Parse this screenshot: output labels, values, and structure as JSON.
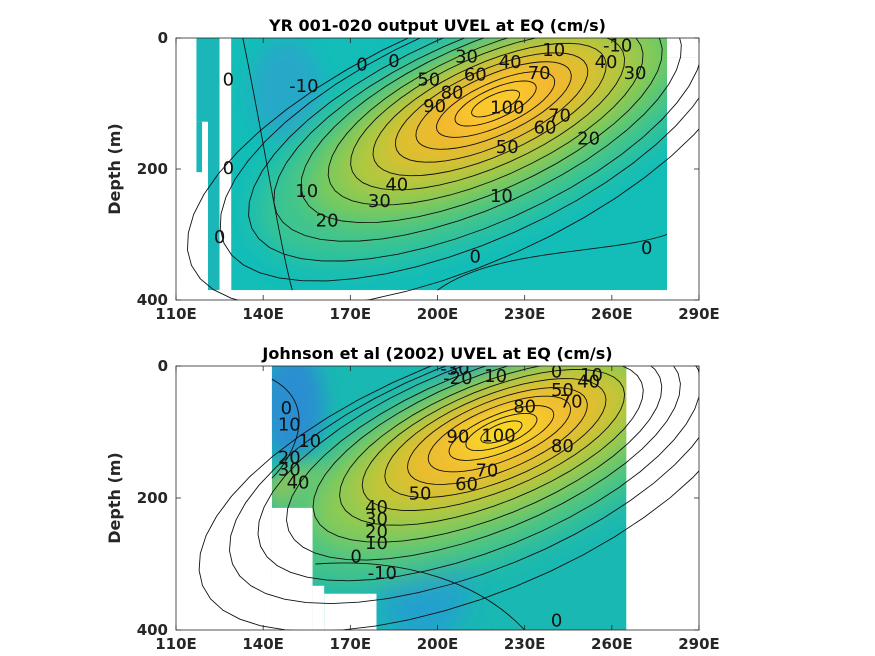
{
  "chart_data": [
    {
      "type": "heatmap",
      "subtype": "filled-contour",
      "title": "YR 001-020 output UVEL at EQ (cm/s)",
      "xlabel": "",
      "ylabel": "Depth (m)",
      "xlim": [
        110,
        290
      ],
      "ylim": [
        0,
        400
      ],
      "y_reversed": true,
      "x_ticks": [
        "110E",
        "140E",
        "170E",
        "200E",
        "230E",
        "260E",
        "290E"
      ],
      "y_ticks": [
        "0",
        "200",
        "400"
      ],
      "grid": false,
      "data_extent": {
        "x": [
          117,
          279
        ],
        "depth": [
          0,
          385
        ]
      },
      "jet_core": {
        "lon": 220,
        "depth": 100,
        "max_speed": 100
      },
      "contour_labels": [
        {
          "text": "0",
          "lon": 128,
          "depth": 65
        },
        {
          "text": "-10",
          "lon": 154,
          "depth": 75
        },
        {
          "text": "0",
          "lon": 174,
          "depth": 42
        },
        {
          "text": "0",
          "lon": 185,
          "depth": 37
        },
        {
          "text": "-10",
          "lon": 262,
          "depth": 13
        },
        {
          "text": "10",
          "lon": 240,
          "depth": 20
        },
        {
          "text": "40",
          "lon": 258,
          "depth": 38
        },
        {
          "text": "30",
          "lon": 268,
          "depth": 55
        },
        {
          "text": "30",
          "lon": 210,
          "depth": 30
        },
        {
          "text": "40",
          "lon": 225,
          "depth": 38
        },
        {
          "text": "70",
          "lon": 235,
          "depth": 55
        },
        {
          "text": "50",
          "lon": 197,
          "depth": 65
        },
        {
          "text": "60",
          "lon": 213,
          "depth": 57
        },
        {
          "text": "80",
          "lon": 205,
          "depth": 85
        },
        {
          "text": "90",
          "lon": 199,
          "depth": 105
        },
        {
          "text": "100",
          "lon": 224,
          "depth": 108
        },
        {
          "text": "70",
          "lon": 242,
          "depth": 120
        },
        {
          "text": "60",
          "lon": 237,
          "depth": 138
        },
        {
          "text": "50",
          "lon": 224,
          "depth": 168
        },
        {
          "text": "20",
          "lon": 252,
          "depth": 155
        },
        {
          "text": "40",
          "lon": 186,
          "depth": 225
        },
        {
          "text": "30",
          "lon": 180,
          "depth": 250
        },
        {
          "text": "10",
          "lon": 155,
          "depth": 235
        },
        {
          "text": "20",
          "lon": 162,
          "depth": 280
        },
        {
          "text": "10",
          "lon": 222,
          "depth": 243
        },
        {
          "text": "0",
          "lon": 128,
          "depth": 200
        },
        {
          "text": "0",
          "lon": 125,
          "depth": 305
        },
        {
          "text": "0",
          "lon": 213,
          "depth": 335
        },
        {
          "text": "0",
          "lon": 272,
          "depth": 322
        }
      ]
    },
    {
      "type": "heatmap",
      "subtype": "filled-contour",
      "title": "Johnson et al (2002) UVEL at EQ (cm/s)",
      "xlabel": "",
      "ylabel": "Depth (m)",
      "xlim": [
        110,
        290
      ],
      "ylim": [
        0,
        400
      ],
      "y_reversed": true,
      "x_ticks": [
        "110E",
        "140E",
        "170E",
        "200E",
        "230E",
        "260E",
        "290E"
      ],
      "y_ticks": [
        "0",
        "200",
        "400"
      ],
      "grid": false,
      "data_extent": {
        "x": [
          143,
          265
        ],
        "depth": [
          0,
          400
        ]
      },
      "jet_core": {
        "lon": 222,
        "depth": 100,
        "max_speed": 100
      },
      "contour_labels": [
        {
          "text": "-30",
          "lon": 206,
          "depth": 5
        },
        {
          "text": "-20",
          "lon": 207,
          "depth": 20
        },
        {
          "text": "10",
          "lon": 220,
          "depth": 17
        },
        {
          "text": "0",
          "lon": 241,
          "depth": 10
        },
        {
          "text": "10",
          "lon": 253,
          "depth": 15
        },
        {
          "text": "40",
          "lon": 252,
          "depth": 25
        },
        {
          "text": "50",
          "lon": 243,
          "depth": 38
        },
        {
          "text": "70",
          "lon": 246,
          "depth": 55
        },
        {
          "text": "80",
          "lon": 230,
          "depth": 63
        },
        {
          "text": "0",
          "lon": 148,
          "depth": 65
        },
        {
          "text": "10",
          "lon": 149,
          "depth": 90
        },
        {
          "text": "10",
          "lon": 156,
          "depth": 115
        },
        {
          "text": "20",
          "lon": 149,
          "depth": 140
        },
        {
          "text": "30",
          "lon": 149,
          "depth": 158
        },
        {
          "text": "40",
          "lon": 152,
          "depth": 178
        },
        {
          "text": "90",
          "lon": 207,
          "depth": 108
        },
        {
          "text": "100",
          "lon": 221,
          "depth": 107
        },
        {
          "text": "80",
          "lon": 243,
          "depth": 123
        },
        {
          "text": "70",
          "lon": 217,
          "depth": 160
        },
        {
          "text": "60",
          "lon": 210,
          "depth": 180
        },
        {
          "text": "50",
          "lon": 194,
          "depth": 195
        },
        {
          "text": "40",
          "lon": 179,
          "depth": 215
        },
        {
          "text": "30",
          "lon": 179,
          "depth": 233
        },
        {
          "text": "20",
          "lon": 179,
          "depth": 252
        },
        {
          "text": "10",
          "lon": 179,
          "depth": 270
        },
        {
          "text": "0",
          "lon": 172,
          "depth": 290
        },
        {
          "text": "-10",
          "lon": 181,
          "depth": 315
        },
        {
          "text": "0",
          "lon": 241,
          "depth": 387
        }
      ]
    }
  ]
}
